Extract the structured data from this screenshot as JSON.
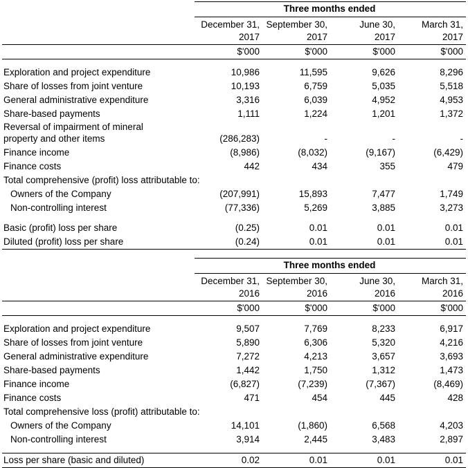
{
  "page": {
    "background": "#ffffff",
    "text_color": "#000000"
  },
  "tables": [
    {
      "id": "three-months-2017",
      "span_header": "Three months ended",
      "unit": "$'000",
      "columns": [
        {
          "month": "December 31,",
          "year": "2017"
        },
        {
          "month": "September 30,",
          "year": "2017"
        },
        {
          "month": "June 30,",
          "year": "2017"
        },
        {
          "month": "March 31,",
          "year": "2017"
        }
      ],
      "rows": [
        {
          "type": "spacer"
        },
        {
          "type": "data",
          "label": "Exploration and project expenditure",
          "values": [
            "10,986",
            "11,595",
            "9,626",
            "8,296"
          ]
        },
        {
          "type": "data",
          "label": "Share of losses from joint venture",
          "values": [
            "10,193",
            "6,759",
            "5,035",
            "5,518"
          ]
        },
        {
          "type": "data",
          "label": "General administrative expenditure",
          "values": [
            "3,316",
            "6,039",
            "4,952",
            "4,953"
          ]
        },
        {
          "type": "data",
          "label": "Share-based payments",
          "values": [
            "1,111",
            "1,224",
            "1,201",
            "1,372"
          ]
        },
        {
          "type": "data",
          "label_lines": [
            "Reversal of impairment of mineral",
            "property and other items"
          ],
          "values": [
            "(286,283)",
            "-",
            "-",
            "-"
          ]
        },
        {
          "type": "data",
          "label": "Finance income",
          "values": [
            "(8,986)",
            "(8,032)",
            "(9,167)",
            "(6,429)"
          ]
        },
        {
          "type": "data",
          "label": "Finance costs",
          "values": [
            "442",
            "434",
            "355",
            "479"
          ]
        },
        {
          "type": "section",
          "label": "Total comprehensive (profit) loss attributable to:"
        },
        {
          "type": "data",
          "indent": true,
          "label": "Owners of the Company",
          "values": [
            "(207,991)",
            "15,893",
            "7,477",
            "1,749"
          ]
        },
        {
          "type": "data",
          "indent": true,
          "label": "Non-controlling interest",
          "values": [
            "(77,336)",
            "5,269",
            "3,885",
            "3,273"
          ]
        },
        {
          "type": "spacer"
        },
        {
          "type": "data",
          "label": "Basic (profit) loss per share",
          "values": [
            "(0.25)",
            "0.01",
            "0.01",
            "0.01"
          ]
        },
        {
          "type": "data",
          "label": "Diluted (profit) loss per share",
          "values": [
            "(0.24)",
            "0.01",
            "0.01",
            "0.01"
          ]
        }
      ]
    },
    {
      "id": "three-months-2016",
      "span_header": "Three months ended",
      "unit": "$'000",
      "columns": [
        {
          "month": "December 31,",
          "year": "2016"
        },
        {
          "month": "September 30,",
          "year": "2016"
        },
        {
          "month": "June 30,",
          "year": "2016"
        },
        {
          "month": "March 31,",
          "year": "2016"
        }
      ],
      "rows": [
        {
          "type": "spacer"
        },
        {
          "type": "data",
          "label": "Exploration and project expenditure",
          "values": [
            "9,507",
            "7,769",
            "8,233",
            "6,917"
          ]
        },
        {
          "type": "data",
          "label": "Share of losses from joint venture",
          "values": [
            "5,890",
            "6,306",
            "5,320",
            "4,216"
          ]
        },
        {
          "type": "data",
          "label": "General administrative expenditure",
          "values": [
            "7,272",
            "4,213",
            "3,657",
            "3,693"
          ]
        },
        {
          "type": "data",
          "label": "Share-based payments",
          "values": [
            "1,442",
            "1,750",
            "1,312",
            "1,473"
          ]
        },
        {
          "type": "data",
          "label": "Finance income",
          "values": [
            "(6,827)",
            "(7,239)",
            "(7,367)",
            "(8,469)"
          ]
        },
        {
          "type": "data",
          "label": "Finance costs",
          "values": [
            "471",
            "454",
            "445",
            "428"
          ]
        },
        {
          "type": "section",
          "label": "Total comprehensive loss (profit) attributable to:"
        },
        {
          "type": "data",
          "indent": true,
          "label": "Owners of the Company",
          "values": [
            "14,101",
            "(1,860)",
            "6,568",
            "4,203"
          ]
        },
        {
          "type": "data",
          "indent": true,
          "label": "Non-controlling interest",
          "values": [
            "3,914",
            "2,445",
            "3,483",
            "2,897"
          ]
        },
        {
          "type": "spacer"
        },
        {
          "type": "data",
          "label": "Loss per share (basic and diluted)",
          "values": [
            "0.02",
            "0.01",
            "0.01",
            "0.01"
          ],
          "rule_above": true
        }
      ]
    }
  ]
}
